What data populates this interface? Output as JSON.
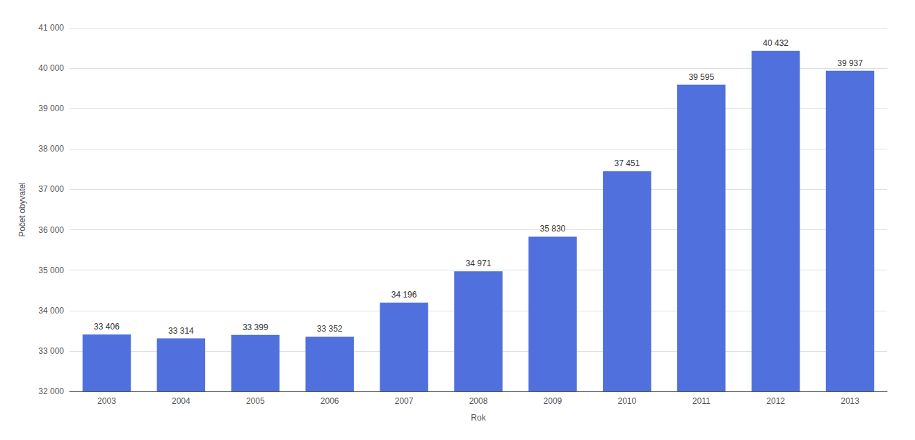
{
  "chart_data": {
    "type": "bar",
    "categories": [
      "2003",
      "2004",
      "2005",
      "2006",
      "2007",
      "2008",
      "2009",
      "2010",
      "2011",
      "2012",
      "2013"
    ],
    "values": [
      33406,
      33314,
      33399,
      33352,
      34196,
      34971,
      35830,
      37451,
      39595,
      40432,
      39937
    ],
    "value_labels": [
      "33 406",
      "33 314",
      "33 399",
      "33 352",
      "34 196",
      "34 971",
      "35 830",
      "37 451",
      "39 595",
      "40 432",
      "39 937"
    ],
    "data_labels": true,
    "xlabel": "Rok",
    "ylabel": "Počet obyvatel",
    "ylim": [
      32000,
      41000
    ],
    "yticks": [
      {
        "value": 32000,
        "label": "32 000"
      },
      {
        "value": 33000,
        "label": "33 000"
      },
      {
        "value": 34000,
        "label": "34 000"
      },
      {
        "value": 35000,
        "label": "35 000"
      },
      {
        "value": 36000,
        "label": "36 000"
      },
      {
        "value": 37000,
        "label": "37 000"
      },
      {
        "value": 38000,
        "label": "38 000"
      },
      {
        "value": 39000,
        "label": "39 000"
      },
      {
        "value": 40000,
        "label": "40 000"
      },
      {
        "value": 41000,
        "label": "41 000"
      }
    ],
    "grid": true
  }
}
